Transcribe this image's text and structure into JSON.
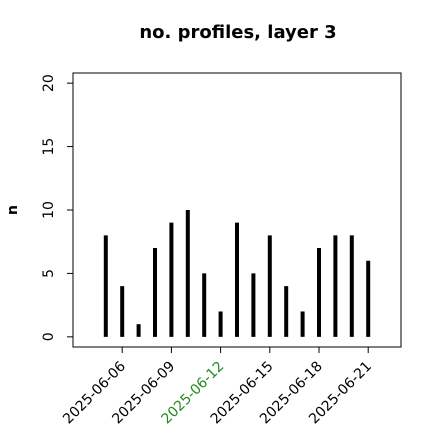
{
  "chart_data": {
    "type": "bar",
    "style": "spike",
    "title": "no. profiles, layer 3",
    "ylabel": "n",
    "x": [
      "2025-06-05",
      "2025-06-06",
      "2025-06-07",
      "2025-06-08",
      "2025-06-09",
      "2025-06-10",
      "2025-06-11",
      "2025-06-12",
      "2025-06-13",
      "2025-06-14",
      "2025-06-15",
      "2025-06-16",
      "2025-06-17",
      "2025-06-18",
      "2025-06-19",
      "2025-06-20",
      "2025-06-21"
    ],
    "values": [
      8,
      4,
      1,
      7,
      9,
      10,
      5,
      2,
      9,
      5,
      8,
      4,
      2,
      7,
      8,
      8,
      6
    ],
    "color": "#000000",
    "xlim": [
      "2025-06-03",
      "2025-06-23"
    ],
    "xticks": [
      "2025-06-06",
      "2025-06-09",
      "2025-06-12",
      "2025-06-15",
      "2025-06-18",
      "2025-06-21"
    ],
    "xtick_label_colors": [
      "#000000",
      "#000000",
      "#228b22",
      "#000000",
      "#000000",
      "#000000"
    ],
    "ylim": [
      -0.8,
      20.8
    ],
    "yticks": [
      0,
      5,
      10,
      15,
      20
    ]
  }
}
